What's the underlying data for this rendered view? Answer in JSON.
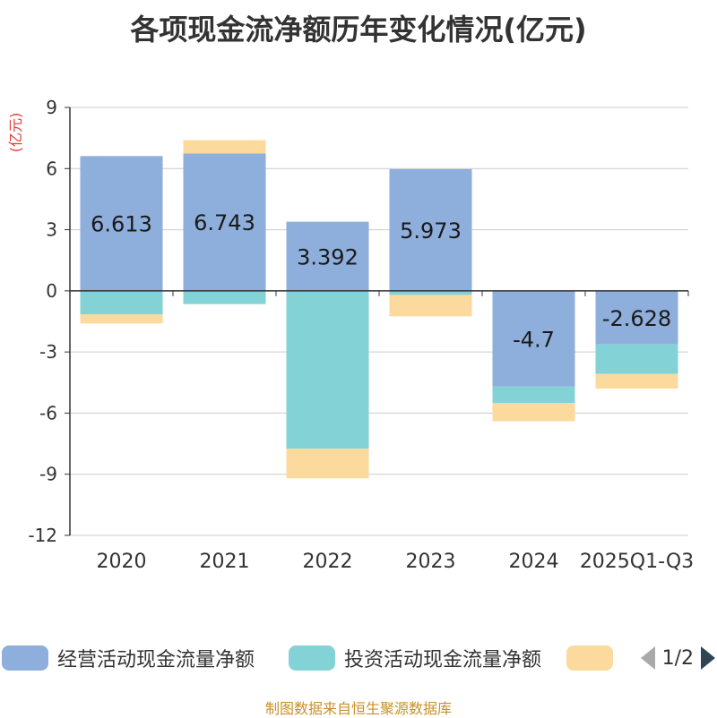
{
  "chart_data": {
    "type": "bar",
    "stacked": true,
    "title": "各项现金流净额历年变化情况(亿元)",
    "ylabel": "(亿元)",
    "xlabel": "",
    "ylim": [
      -12,
      9
    ],
    "yticks": [
      9,
      6,
      3,
      0,
      -3,
      -6,
      -9,
      -12
    ],
    "grid": true,
    "categories": [
      "2020",
      "2021",
      "2022",
      "2023",
      "2024",
      "2025Q1-Q3"
    ],
    "series": [
      {
        "name": "经营活动现金流量净额",
        "color": "#8eaedb",
        "values": [
          6.613,
          6.743,
          3.392,
          5.973,
          -4.7,
          -2.628
        ],
        "labels": [
          "6.613",
          "6.743",
          "3.392",
          "5.973",
          "-4.7",
          "-2.628"
        ]
      },
      {
        "name": "投资活动现金流量净额",
        "color": "#83d3d6",
        "values": [
          -1.15,
          -0.65,
          -7.75,
          -0.2,
          -0.8,
          -1.45
        ]
      },
      {
        "name": "",
        "color": "#fcd99c",
        "values": [
          -0.45,
          0.65,
          -1.45,
          -1.05,
          -0.9,
          -0.72
        ]
      }
    ],
    "legend_position": "bottom",
    "pager": "1/2",
    "source": "制图数据来自恒生聚源数据库"
  }
}
